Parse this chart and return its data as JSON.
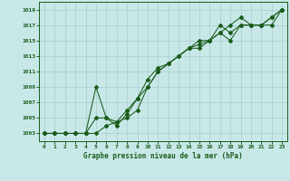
{
  "title": "Graphe pression niveau de la mer (hPa)",
  "bg_color": "#c8e8e8",
  "grid_color": "#a8cccc",
  "line_color": "#1a5c1a",
  "x_labels": [
    "0",
    "1",
    "2",
    "3",
    "4",
    "5",
    "6",
    "7",
    "8",
    "9",
    "10",
    "11",
    "12",
    "13",
    "14",
    "15",
    "16",
    "17",
    "18",
    "19",
    "20",
    "21",
    "22",
    "23"
  ],
  "ylim_min": 1002.0,
  "ylim_max": 1020.0,
  "yticks": [
    1003,
    1005,
    1007,
    1009,
    1011,
    1013,
    1015,
    1017,
    1019
  ],
  "series1": [
    1003,
    1003,
    1003,
    1003,
    1003,
    1009,
    1005,
    1004,
    1005.5,
    1007.5,
    1009,
    1011,
    1012,
    1013,
    1014,
    1014.5,
    1015,
    1016,
    1017,
    1018,
    1017,
    1017,
    1018,
    1019
  ],
  "series2": [
    1003,
    1003,
    1003,
    1003,
    1003,
    1005,
    1005,
    1004.5,
    1006,
    1007.5,
    1010,
    1011.5,
    1012,
    1013,
    1014,
    1015,
    1015,
    1017,
    1016,
    1017,
    1017,
    1017,
    1018,
    1019
  ],
  "series3": [
    1003,
    1003,
    1003,
    1003,
    1003,
    1003,
    1004,
    1004.5,
    1005,
    1006,
    1009,
    1011,
    1012,
    1013,
    1014,
    1014,
    1015,
    1016,
    1015,
    1017,
    1017,
    1017,
    1017,
    1019
  ]
}
